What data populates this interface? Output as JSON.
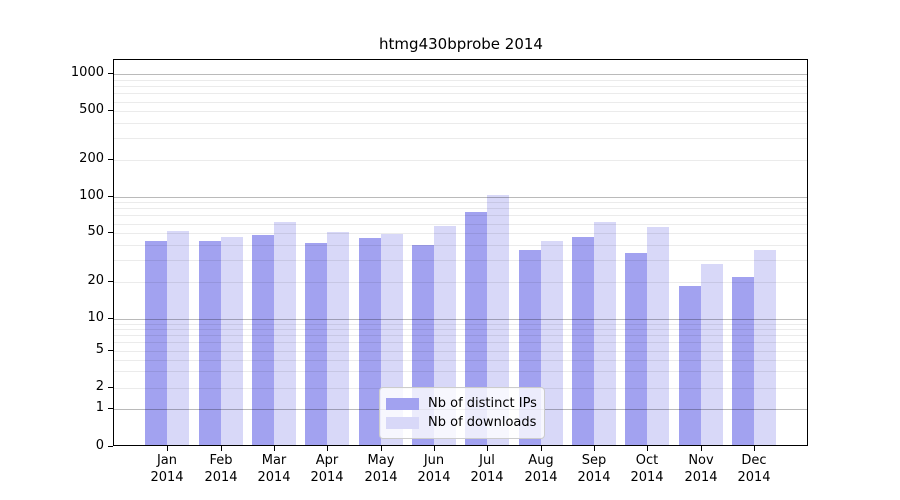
{
  "title": "htmg430bprobe 2014",
  "colors": {
    "distinct_ips": "#a2a2f0",
    "downloads": "#d8d8f8",
    "grid_major": "rgba(0,0,0,0.27)",
    "grid_minor": "rgba(0,0,0,0.08)",
    "axis": "#000000",
    "legend_border": "#cccccc"
  },
  "legend": {
    "items": [
      {
        "label": "Nb of distinct IPs",
        "series": "distinct_ips"
      },
      {
        "label": "Nb of downloads",
        "series": "downloads"
      }
    ]
  },
  "chart_data": {
    "type": "bar",
    "title": "htmg430bprobe 2014",
    "categories": [
      "Jan 2014",
      "Feb 2014",
      "Mar 2014",
      "Apr 2014",
      "May 2014",
      "Jun 2014",
      "Jul 2014",
      "Aug 2014",
      "Sep 2014",
      "Oct 2014",
      "Nov 2014",
      "Dec 2014"
    ],
    "series": [
      {
        "name": "Nb of distinct IPs",
        "color": "#a2a2f0",
        "values": [
          42,
          42,
          47,
          40,
          44,
          39,
          72,
          35,
          45,
          33,
          18,
          21
        ]
      },
      {
        "name": "Nb of downloads",
        "color": "#d8d8f8",
        "values": [
          50,
          45,
          60,
          49,
          48,
          55,
          100,
          42,
          60,
          54,
          27,
          35
        ]
      }
    ],
    "xlabel": "",
    "ylabel": "",
    "yticks": [
      0,
      1,
      2,
      5,
      10,
      20,
      50,
      100,
      200,
      500,
      1000
    ],
    "yscale": "log-like (compressed log below 10, linear segment 0-1)",
    "ylim": [
      0,
      1300
    ],
    "grid": true,
    "legend_position": "lower center"
  }
}
